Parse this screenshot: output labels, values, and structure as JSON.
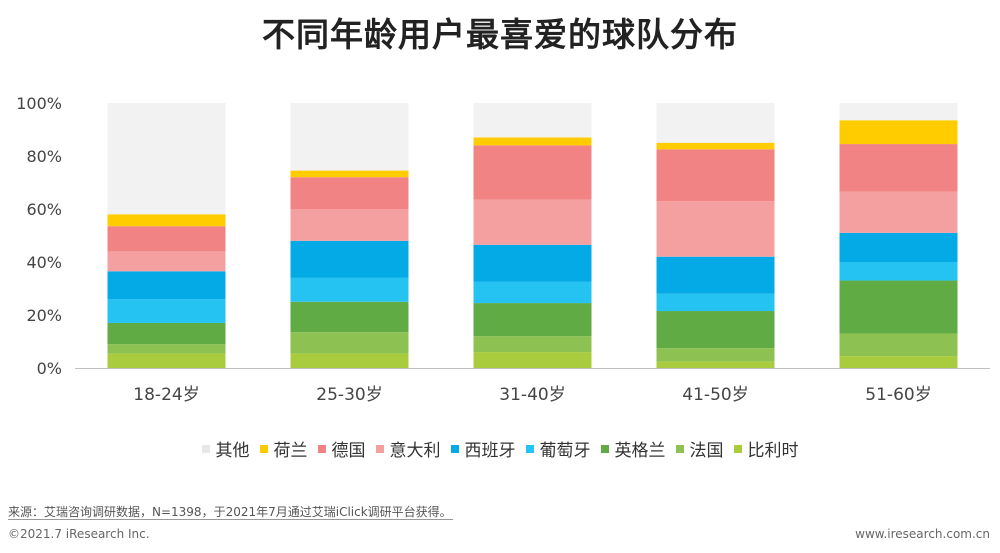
{
  "title": "不同年龄用户最喜爱的球队分布",
  "chart_data": {
    "type": "bar",
    "stacked": true,
    "categories": [
      "18-24岁",
      "25-30岁",
      "31-40岁",
      "41-50岁",
      "51-60岁"
    ],
    "yticks": [
      "0%",
      "20%",
      "40%",
      "60%",
      "80%",
      "100%"
    ],
    "ylim": [
      0,
      100
    ],
    "legend_position": "bottom",
    "grid": false,
    "series": [
      {
        "name": "比利时",
        "color": "#a9cc3e",
        "values": [
          5.5,
          5.5,
          6.0,
          2.5,
          4.5
        ]
      },
      {
        "name": "法国",
        "color": "#8dc152",
        "values": [
          3.5,
          8.0,
          6.0,
          5.0,
          8.5
        ]
      },
      {
        "name": "英格兰",
        "color": "#61ab45",
        "values": [
          8.0,
          11.5,
          12.5,
          14.0,
          20.0
        ]
      },
      {
        "name": "葡萄牙",
        "color": "#24c3f2",
        "values": [
          9.0,
          9.0,
          8.0,
          6.5,
          7.0
        ]
      },
      {
        "name": "西班牙",
        "color": "#04aae6",
        "values": [
          10.5,
          14.0,
          14.0,
          14.0,
          11.0
        ]
      },
      {
        "name": "意大利",
        "color": "#f4a0a0",
        "values": [
          7.5,
          12.0,
          17.0,
          21.0,
          15.5
        ]
      },
      {
        "name": "德国",
        "color": "#f28385",
        "values": [
          9.5,
          12.0,
          20.5,
          19.5,
          18.0
        ]
      },
      {
        "name": "荷兰",
        "color": "#ffcc00",
        "values": [
          4.5,
          2.5,
          3.0,
          2.5,
          9.0
        ]
      },
      {
        "name": "其他",
        "color": "#f2f2f2",
        "values": [
          42.0,
          25.5,
          13.0,
          15.0,
          6.5
        ]
      }
    ],
    "legend_order": [
      "其他",
      "荷兰",
      "德国",
      "意大利",
      "西班牙",
      "葡萄牙",
      "英格兰",
      "法国",
      "比利时"
    ]
  },
  "footer": {
    "source": "来源：艾瑞咨询调研数据，N=1398，于2021年7月通过艾瑞iClick调研平台获得。",
    "copyright": "©2021.7 iResearch Inc.",
    "website": "www.iresearch.com.cn"
  }
}
